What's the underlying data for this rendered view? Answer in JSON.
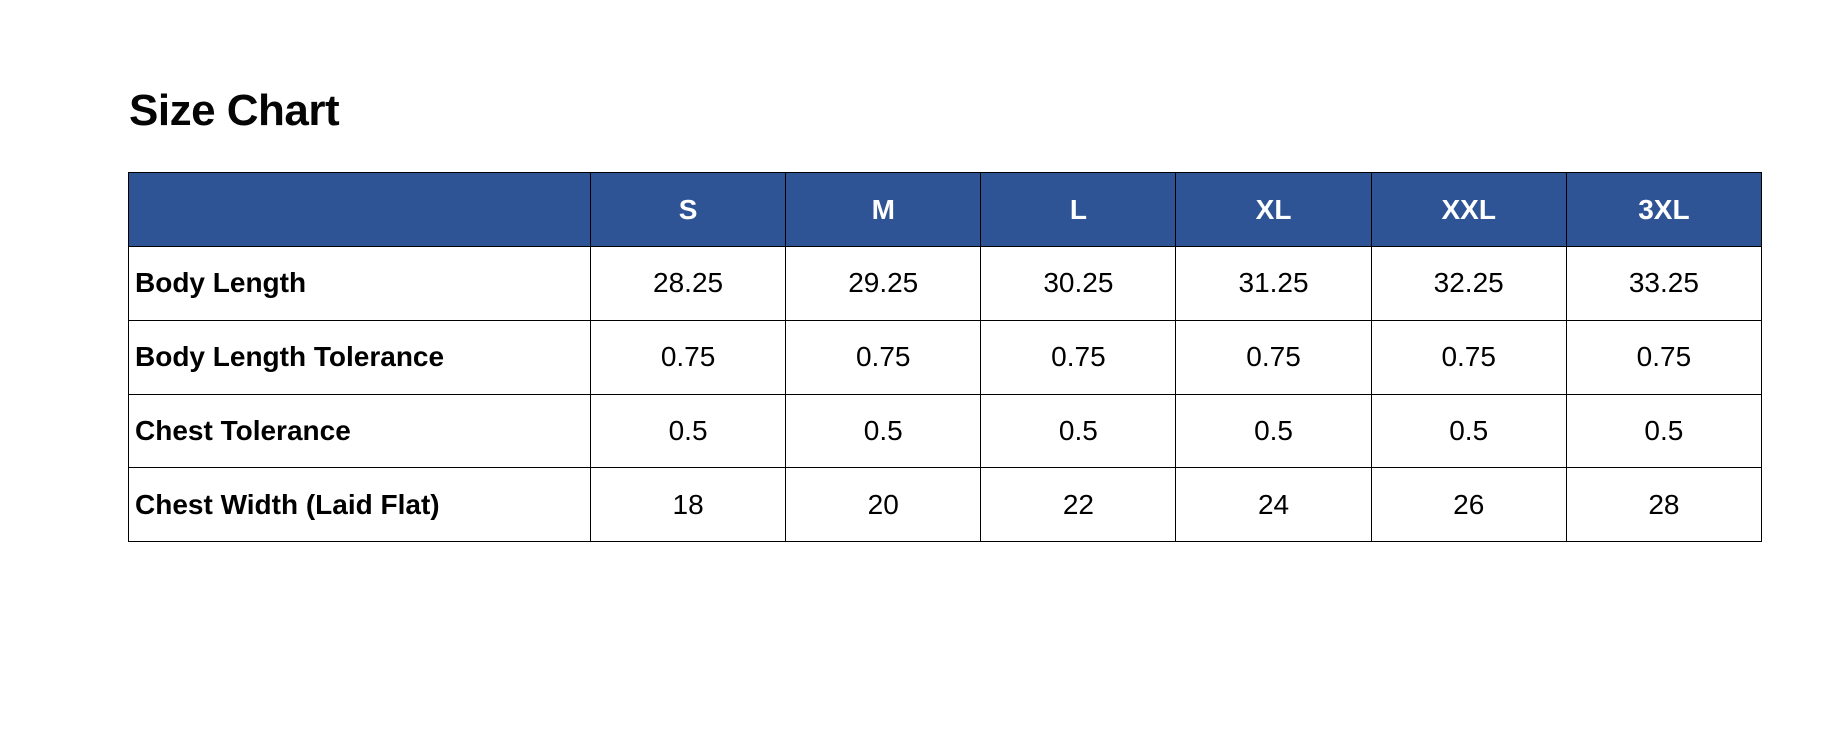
{
  "page": {
    "background_color": "#ffffff",
    "text_color": "#000000"
  },
  "title": "Size Chart",
  "table": {
    "header_bg_color": "#2F5496",
    "header_text_color": "#ffffff",
    "border_color": "#000000",
    "columns": [
      "",
      "S",
      "M",
      "L",
      "XL",
      "XXL",
      "3XL"
    ],
    "rows": [
      {
        "label": "Body Length",
        "values": [
          "28.25",
          "29.25",
          "30.25",
          "31.25",
          "32.25",
          "33.25"
        ]
      },
      {
        "label": "Body Length Tolerance",
        "values": [
          "0.75",
          "0.75",
          "0.75",
          "0.75",
          "0.75",
          "0.75"
        ]
      },
      {
        "label": "Chest Tolerance",
        "values": [
          "0.5",
          "0.5",
          "0.5",
          "0.5",
          "0.5",
          "0.5"
        ]
      },
      {
        "label": "Chest Width (Laid Flat)",
        "values": [
          "18",
          "20",
          "22",
          "24",
          "26",
          "28"
        ]
      }
    ]
  }
}
